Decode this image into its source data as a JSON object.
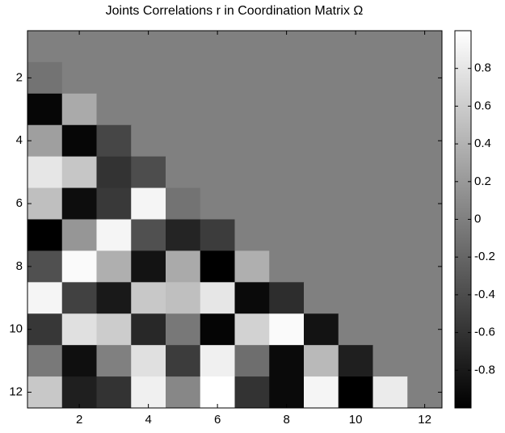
{
  "chart_data": {
    "type": "heatmap",
    "title": "Joints Correlations r in Coordination Matrix Ω",
    "z": [
      [
        0,
        0,
        0,
        0,
        0,
        0,
        0,
        0,
        0,
        0,
        0,
        0
      ],
      [
        -0.1,
        0,
        0,
        0,
        0,
        0,
        0,
        0,
        0,
        0,
        0,
        0
      ],
      [
        -0.95,
        0.33,
        0,
        0,
        0,
        0,
        0,
        0,
        0,
        0,
        0,
        0
      ],
      [
        0.25,
        -0.95,
        -0.45,
        0,
        0,
        0,
        0,
        0,
        0,
        0,
        0,
        0
      ],
      [
        0.8,
        0.55,
        -0.6,
        -0.4,
        0,
        0,
        0,
        0,
        0,
        0,
        0,
        0
      ],
      [
        0.5,
        -0.9,
        -0.55,
        0.92,
        -0.1,
        0,
        0,
        0,
        0,
        0,
        0,
        0
      ],
      [
        -1,
        0.18,
        0.92,
        -0.37,
        -0.72,
        -0.53,
        0,
        0,
        0,
        0,
        0,
        0
      ],
      [
        -0.37,
        0.96,
        0.37,
        -0.85,
        0.33,
        -1,
        0.37,
        0,
        0,
        0,
        0,
        0
      ],
      [
        0.92,
        -0.49,
        -0.8,
        0.57,
        0.5,
        0.8,
        -0.92,
        -0.65,
        0,
        0,
        0,
        0
      ],
      [
        -0.57,
        0.76,
        0.6,
        -0.69,
        -0.06,
        -0.96,
        0.65,
        0.96,
        -0.85,
        0,
        0,
        0
      ],
      [
        -0.05,
        -0.88,
        0,
        0.76,
        -0.53,
        0.88,
        -0.14,
        -0.92,
        0.45,
        -0.76,
        0,
        0
      ],
      [
        0.57,
        -0.76,
        -0.6,
        0.88,
        0.06,
        1,
        -0.6,
        -0.92,
        0.92,
        -1,
        0.84,
        0
      ]
    ],
    "xlim": [
      0.5,
      12.5
    ],
    "ylim": [
      0.5,
      12.5
    ],
    "xticks": [
      2,
      4,
      6,
      8,
      10,
      12
    ],
    "yticks": [
      2,
      4,
      6,
      8,
      10,
      12
    ],
    "clim": [
      -1,
      1
    ],
    "cticks": [
      -0.8,
      -0.6,
      -0.4,
      -0.2,
      0,
      0.2,
      0.4,
      0.6,
      0.8
    ]
  }
}
